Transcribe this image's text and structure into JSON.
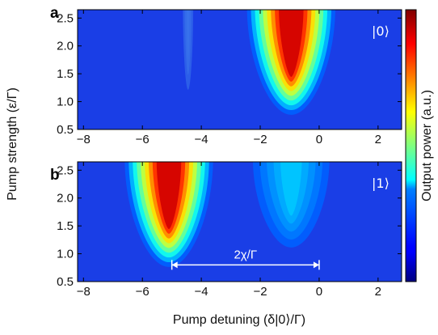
{
  "chart_data": [
    {
      "type": "heatmap",
      "panel_label": "a",
      "state_label": "|0⟩",
      "xlabel": "",
      "ylabel": "",
      "xlim": [
        -8.2,
        2.8
      ],
      "ylim": [
        0.5,
        2.65
      ],
      "xticks": [
        -8,
        -6,
        -4,
        -2,
        0,
        2
      ],
      "xtick_labels": [
        "−8",
        "−6",
        "−4",
        "−2",
        "0",
        "2"
      ],
      "yticks": [
        0.5,
        1.0,
        1.5,
        2.0,
        2.5
      ],
      "ytick_labels": [
        "0.5",
        "1.0",
        "1.5",
        "2.0",
        "2.5"
      ],
      "features": [
        {
          "center_detuning": -0.95,
          "onset_pump_strength": 0.85,
          "peak_power": 0.92,
          "note": "strong red lobe"
        },
        {
          "center_detuning": -4.45,
          "onset_pump_strength": 1.3,
          "peak_power": 0.07,
          "note": "faint cyan streak"
        }
      ]
    },
    {
      "type": "heatmap",
      "panel_label": "b",
      "state_label": "|1⟩",
      "xlabel": "Pump detuning (δ|0⟩/Γ)",
      "ylabel": "",
      "xlim": [
        -8.2,
        2.8
      ],
      "ylim": [
        0.5,
        2.65
      ],
      "xticks": [
        -8,
        -6,
        -4,
        -2,
        0,
        2
      ],
      "xtick_labels": [
        "−8",
        "−6",
        "−4",
        "−2",
        "0",
        "2"
      ],
      "yticks": [
        0.5,
        1.0,
        1.5,
        2.0,
        2.5
      ],
      "ytick_labels": [
        "0.5",
        "1.0",
        "1.5",
        "2.0",
        "2.5"
      ],
      "features": [
        {
          "center_detuning": -5.1,
          "onset_pump_strength": 0.85,
          "peak_power": 0.92,
          "note": "strong red lobe"
        },
        {
          "center_detuning": -0.95,
          "onset_pump_strength": 1.2,
          "peak_power": 0.32,
          "note": "faint cyan lobe"
        }
      ],
      "annotation": {
        "text": "2χ/Γ",
        "x_start": -5.0,
        "x_end": 0.0,
        "y": 0.8
      }
    }
  ],
  "shared": {
    "ylabel": "Pump strength (ε/Γ)",
    "colorbar_label": "Output power (a.u.)"
  },
  "colors": {
    "colormap": "jet",
    "background_level": "#1a3ee6",
    "peak_level": "#c81010"
  }
}
